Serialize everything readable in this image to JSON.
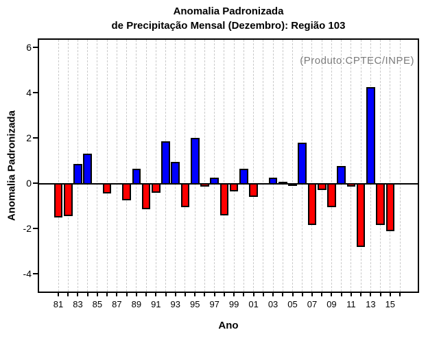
{
  "figure": {
    "title_line1": "Anomalia Padronizada",
    "title_line2": "de Precipitação Mensal (Dezembro): Região 103",
    "watermark": "(Produto:CPTEC/INPE)",
    "xlabel": "Ano",
    "ylabel": "Anomalia Padronizada"
  },
  "colors": {
    "positive_bar": "#0000FF",
    "negative_bar": "#FF0000",
    "bar_border": "#000000",
    "gridline": "#C9C9C9",
    "axis": "#000000",
    "watermark_text": "#7B7B7B"
  },
  "chart_data": {
    "type": "bar",
    "title": "Anomalia Padronizada de Precipitação Mensal (Dezembro): Região 103",
    "xlabel": "Ano",
    "ylabel": "Anomalia Padronizada",
    "ylim": [
      -4.8,
      6.3
    ],
    "yticks": [
      6,
      4,
      2,
      0,
      -2,
      -4
    ],
    "grid": "vertical dashed gridline at every year 1981-2016",
    "legend": "none",
    "bar_color_rule": "positive = blue, negative = red",
    "years": [
      1981,
      1982,
      1983,
      1984,
      1985,
      1986,
      1987,
      1988,
      1989,
      1990,
      1991,
      1992,
      1993,
      1994,
      1995,
      1996,
      1997,
      1998,
      1999,
      2000,
      2001,
      2002,
      2003,
      2004,
      2005,
      2006,
      2007,
      2008,
      2009,
      2010,
      2011,
      2012,
      2013,
      2014,
      2015
    ],
    "values": [
      -1.45,
      -1.4,
      0.85,
      1.3,
      0,
      -0.4,
      0,
      -0.7,
      0.65,
      -1.1,
      -0.35,
      1.85,
      0.95,
      -1.0,
      2.0,
      -0.1,
      0.25,
      -1.35,
      -0.3,
      0.65,
      -0.55,
      0,
      0.25,
      0.05,
      -0.05,
      1.8,
      -1.8,
      -0.25,
      -1.0,
      0.75,
      -0.1,
      -2.75,
      4.25,
      -1.8,
      -2.05
    ],
    "xtick_labels": [
      "81",
      "83",
      "85",
      "87",
      "89",
      "91",
      "93",
      "95",
      "97",
      "99",
      "01",
      "03",
      "05",
      "07",
      "09",
      "11",
      "13",
      "15"
    ],
    "note": "years 1985, 1987 and 2002 show no bar (zero anomaly)"
  }
}
